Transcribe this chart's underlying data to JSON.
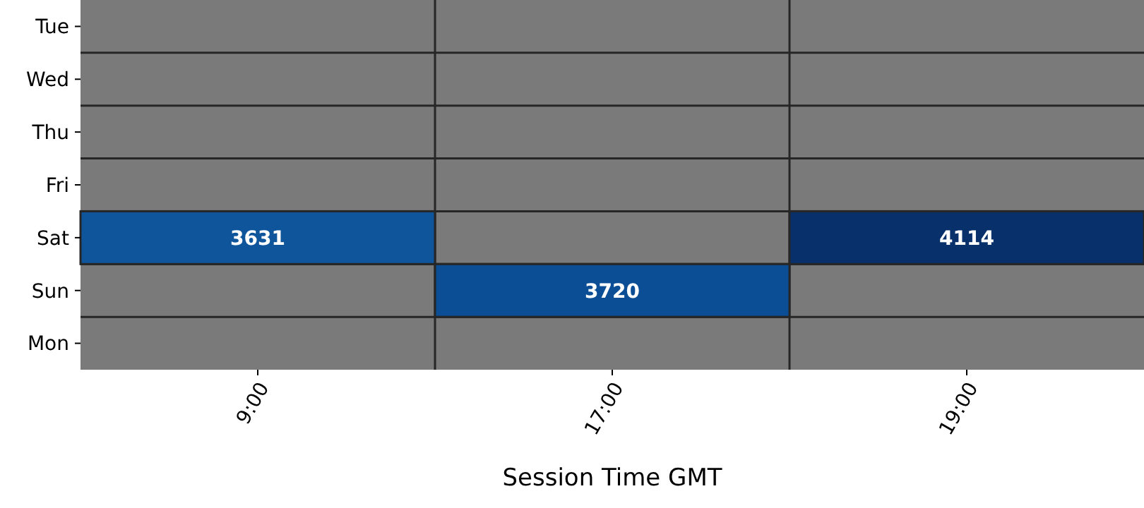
{
  "chart_data": {
    "type": "heatmap",
    "xlabel": "Session Time GMT",
    "categories": [
      "9:00",
      "17:00",
      "19:00"
    ],
    "y_categories": [
      "Tue",
      "Wed",
      "Thu",
      "Fri",
      "Sat",
      "Sun",
      "Mon"
    ],
    "cells": [
      [
        null,
        null,
        null
      ],
      [
        null,
        null,
        null
      ],
      [
        null,
        null,
        null
      ],
      [
        null,
        null,
        null
      ],
      [
        3631,
        null,
        4114
      ],
      [
        null,
        3720,
        null
      ],
      [
        null,
        null,
        null
      ]
    ],
    "data_labels": true
  }
}
